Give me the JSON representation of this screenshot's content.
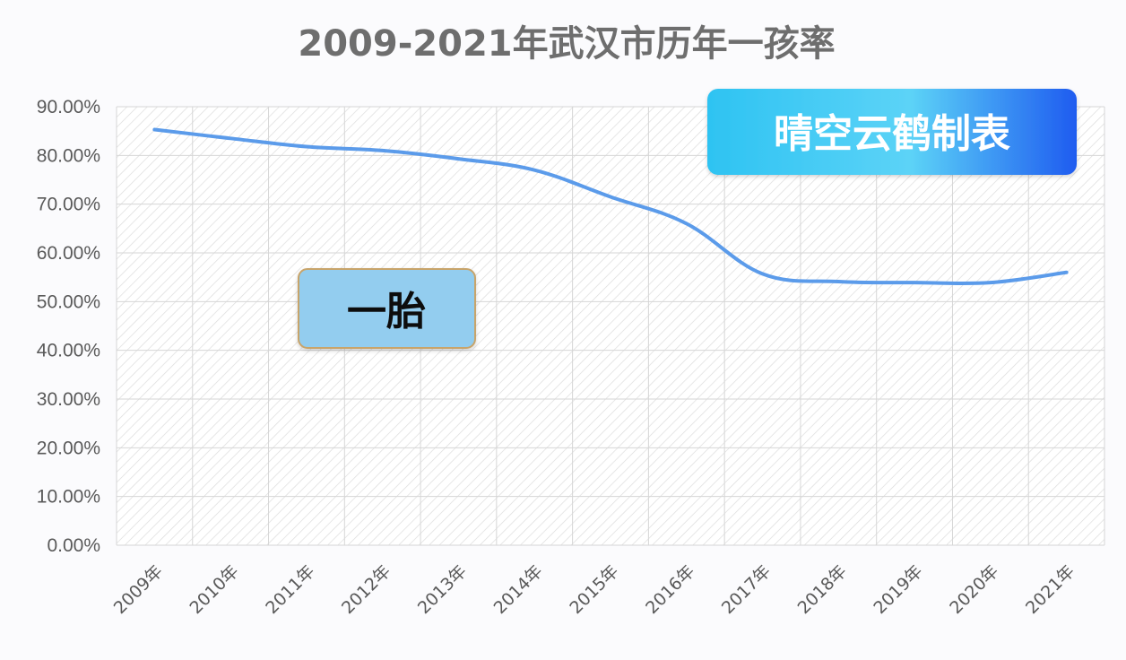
{
  "chart_data": {
    "type": "line",
    "title": "2009-2021年武汉市历年一孩率",
    "categories": [
      "2009年",
      "2010年",
      "2011年",
      "2012年",
      "2013年",
      "2014年",
      "2015年",
      "2016年",
      "2017年",
      "2018年",
      "2019年",
      "2020年",
      "2021年"
    ],
    "series": [
      {
        "name": "一胎",
        "values": [
          85.3,
          83.5,
          81.8,
          81.0,
          79.3,
          77.0,
          71.5,
          66.0,
          55.7,
          54.1,
          53.9,
          53.9,
          56.0
        ]
      }
    ],
    "ylim": [
      0,
      90
    ],
    "yticks": [
      "0.00%",
      "10.00%",
      "20.00%",
      "30.00%",
      "40.00%",
      "50.00%",
      "60.00%",
      "70.00%",
      "80.00%",
      "90.00%"
    ],
    "grid": true,
    "line_color": "#5b9bea"
  },
  "watermark": {
    "text": "晴空云鹤制表",
    "color_start": "#2ec3f2",
    "color_end": "#1f5cf0",
    "text_color": "#ffffff"
  },
  "series_label": {
    "text": "一胎",
    "fill": "#93cdef",
    "border": "#c8a46a"
  }
}
